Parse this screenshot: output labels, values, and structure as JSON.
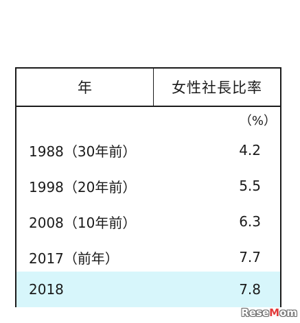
{
  "table": {
    "header_year": "年",
    "header_ratio": "女性社長比率",
    "unit": "（%）",
    "rows": [
      {
        "year": "1988（30年前）",
        "value": "4.2"
      },
      {
        "year": "1998（20年前）",
        "value": "5.5"
      },
      {
        "year": "2008（10年前）",
        "value": "6.3"
      },
      {
        "year": "2017（前年）",
        "value": "7.7"
      },
      {
        "year": "2018",
        "value": "7.8"
      }
    ],
    "highlight_color": "#d7f6fb"
  },
  "watermark": {
    "prefix": "Rese",
    "accent": "M",
    "suffix": "om"
  }
}
